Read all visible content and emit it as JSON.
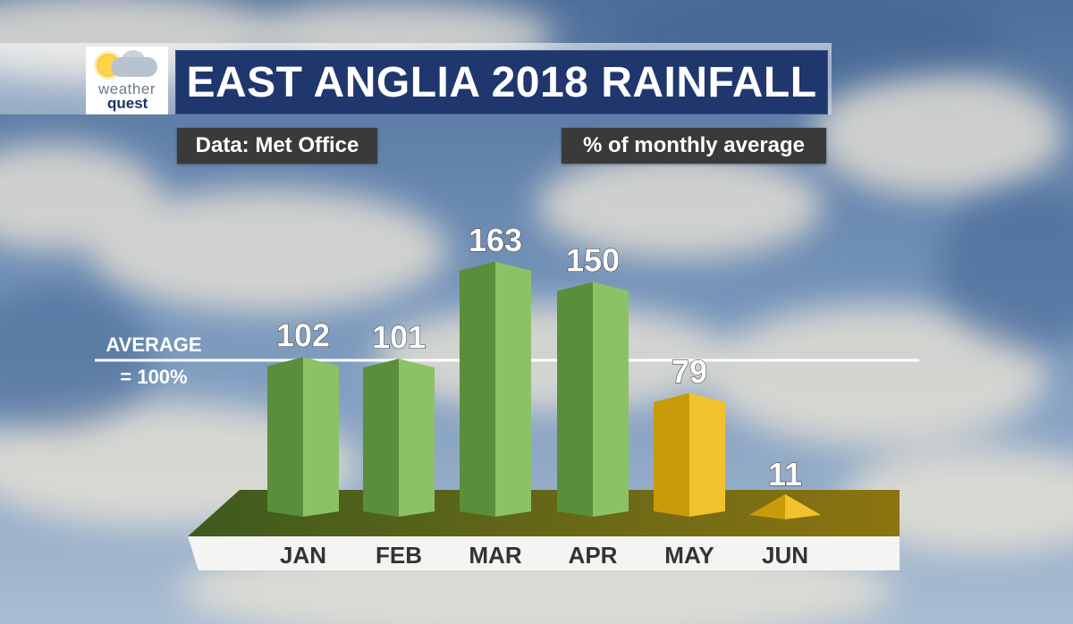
{
  "header": {
    "title": "EAST ANGLIA 2018 RAINFALL",
    "source": "Data: Met Office",
    "unit": "% of monthly average"
  },
  "logo": {
    "line1": "weather",
    "line2": "quest"
  },
  "reference": {
    "line1": "AVERAGE",
    "line2": "= 100%",
    "value": 100
  },
  "colors": {
    "above_average_light": "#8cc265",
    "above_average_dark": "#5a8e3a",
    "below_average_light": "#f2c12e",
    "below_average_dark": "#c99a0a",
    "title_bg": "#20376e",
    "floor_left": "#3d5a1e",
    "floor_right": "#8c7410"
  },
  "chart_data": {
    "type": "bar",
    "title": "EAST ANGLIA 2018 RAINFALL",
    "ylabel": "% of monthly average",
    "categories": [
      "JAN",
      "FEB",
      "MAR",
      "APR",
      "MAY",
      "JUN"
    ],
    "values": [
      102,
      101,
      163,
      150,
      79,
      11
    ],
    "value_labels": [
      "102",
      "101",
      "163",
      "150",
      "79",
      "11"
    ],
    "reference_line": 100
  }
}
